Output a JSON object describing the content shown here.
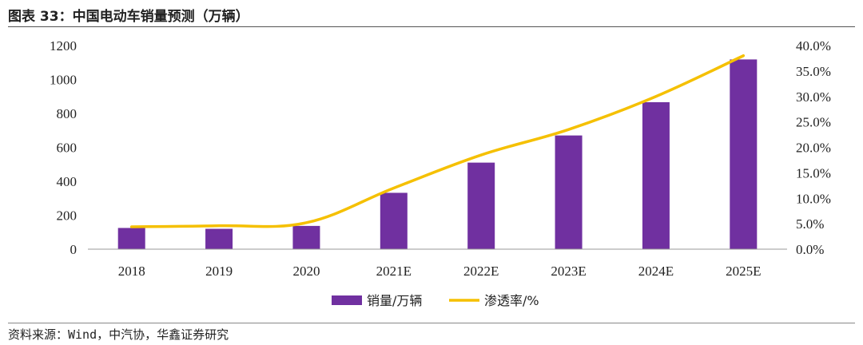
{
  "title": "图表 33：中国电动车销量预测（万辆）",
  "source": "资料来源：Wind，中汽协，华鑫证券研究",
  "colors": {
    "bar": "#7030A0",
    "line": "#F5C000",
    "axis": "#999999"
  },
  "chart_data": {
    "type": "bar",
    "categories": [
      "2018",
      "2019",
      "2020",
      "2021E",
      "2022E",
      "2023E",
      "2024E",
      "2025E"
    ],
    "series": [
      {
        "name": "销量/万辆",
        "type": "bar",
        "axis": "left",
        "values": [
          125,
          120,
          137,
          332,
          510,
          670,
          866,
          1118
        ]
      },
      {
        "name": "渗透率/%",
        "type": "line",
        "axis": "right",
        "values": [
          4.4,
          4.6,
          5.2,
          12.0,
          18.5,
          23.5,
          30.0,
          38.0
        ]
      }
    ],
    "y_left": {
      "range": [
        0,
        1200
      ],
      "ticks": [
        "0",
        "200",
        "400",
        "600",
        "800",
        "1000",
        "1200"
      ]
    },
    "y_right": {
      "range": [
        0,
        40
      ],
      "ticks": [
        "0.0%",
        "5.0%",
        "10.0%",
        "15.0%",
        "20.0%",
        "25.0%",
        "30.0%",
        "35.0%",
        "40.0%"
      ]
    },
    "grid": false,
    "legend_position": "bottom-center"
  }
}
